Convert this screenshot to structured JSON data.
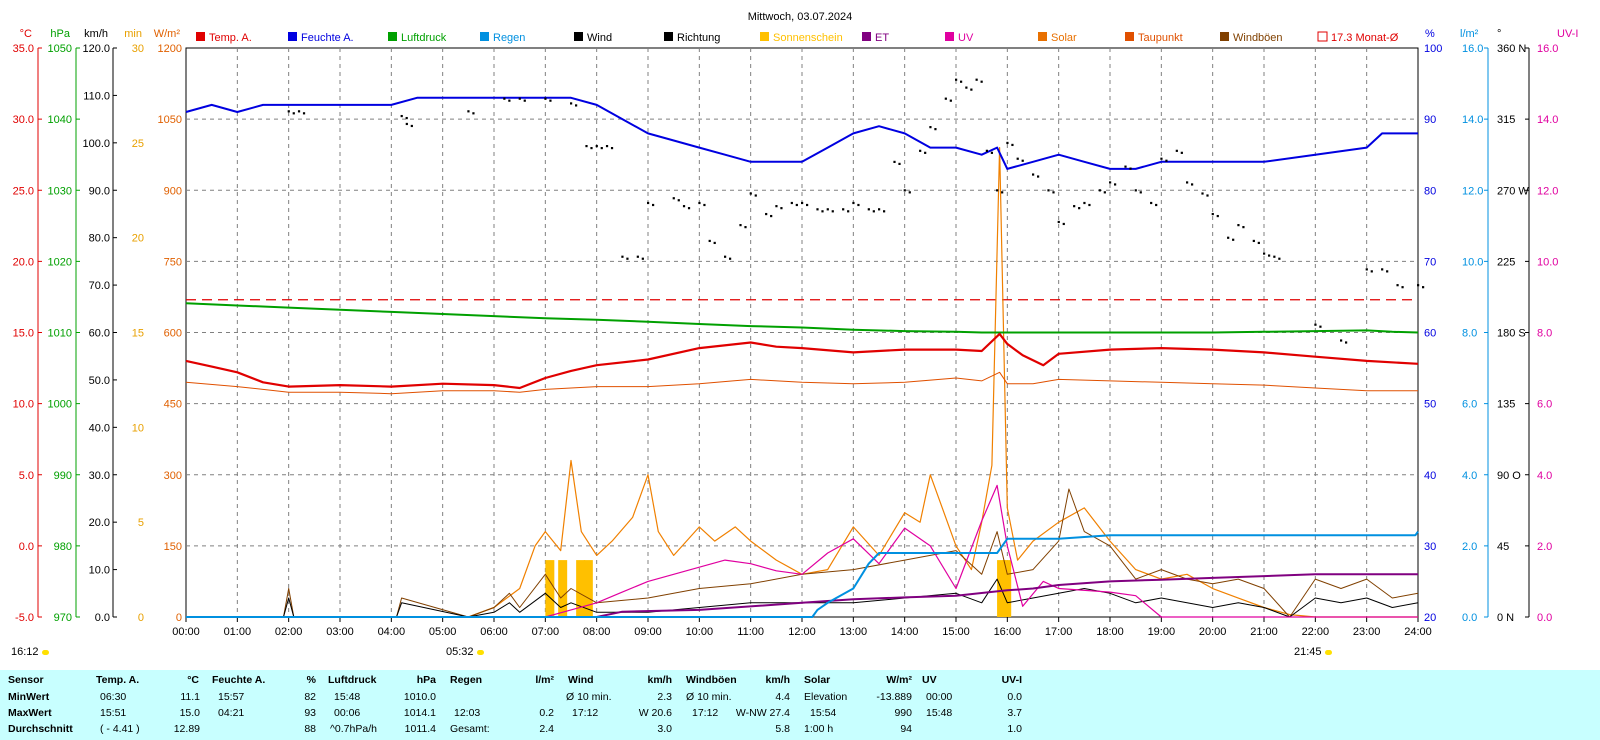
{
  "chart_data": {
    "type": "line",
    "title": "Mittwoch, 03.07.2024",
    "x_ticks": [
      "00:00",
      "01:00",
      "02:00",
      "03:00",
      "04:00",
      "05:00",
      "06:00",
      "07:00",
      "08:00",
      "09:00",
      "10:00",
      "11:00",
      "12:00",
      "13:00",
      "14:00",
      "15:00",
      "16:00",
      "17:00",
      "18:00",
      "19:00",
      "20:00",
      "21:00",
      "22:00",
      "23:00",
      "24:00"
    ],
    "axes": {
      "temp": {
        "unit": "°C",
        "range": [
          -5,
          35
        ],
        "ticks": [
          "35.0",
          "30.0",
          "25.0",
          "20.0",
          "15.0",
          "10.0",
          "5.0",
          "0.0",
          "-5.0"
        ],
        "color": "#e00000"
      },
      "pressure": {
        "unit": "hPa",
        "range": [
          970,
          1050
        ],
        "ticks": [
          "1050",
          "1040",
          "1030",
          "1020",
          "1010",
          "1000",
          "990",
          "980",
          "970"
        ],
        "color": "#00a000"
      },
      "wind": {
        "unit": "km/h",
        "range": [
          0,
          120
        ],
        "ticks": [
          "120.0",
          "110.0",
          "100.0",
          "90.0",
          "80.0",
          "70.0",
          "60.0",
          "50.0",
          "40.0",
          "30.0",
          "20.0",
          "10.0",
          "0.0"
        ],
        "color": "#000000"
      },
      "sunshine": {
        "unit": "min",
        "range": [
          0,
          30
        ],
        "ticks": [
          "30",
          "25",
          "20",
          "15",
          "10",
          "5",
          "0"
        ],
        "color": "#e8a000"
      },
      "solar": {
        "unit": "W/m²",
        "range": [
          0,
          1200
        ],
        "ticks": [
          "1200",
          "1050",
          "900",
          "750",
          "600",
          "450",
          "300",
          "150",
          "0"
        ],
        "color": "#e06000"
      },
      "humidity": {
        "unit": "%",
        "range": [
          20,
          100
        ],
        "ticks": [
          "100",
          "90",
          "80",
          "70",
          "60",
          "50",
          "40",
          "30",
          "20"
        ],
        "color": "#0000e0"
      },
      "rain": {
        "unit": "l/m²",
        "range": [
          0,
          16
        ],
        "ticks": [
          "16.0",
          "14.0",
          "12.0",
          "10.0",
          "8.0",
          "6.0",
          "4.0",
          "2.0",
          "0.0"
        ],
        "color": "#0090e0"
      },
      "direction": {
        "unit": "°",
        "ticks": [
          "360 N",
          "315",
          "270 W",
          "225",
          "180 S",
          "135",
          "90 O",
          "45",
          "0 N"
        ],
        "color": "#000000"
      },
      "uv": {
        "unit": "UV-I",
        "range": [
          0,
          16
        ],
        "ticks": [
          "16.0",
          "14.0",
          "12.0",
          "10.0",
          "8.0",
          "6.0",
          "4.0",
          "2.0",
          "0.0"
        ],
        "color": "#e000a0"
      }
    },
    "legend": [
      {
        "name": "Temp. A.",
        "color": "#e00000"
      },
      {
        "name": "Feuchte A.",
        "color": "#0000e0"
      },
      {
        "name": "Luftdruck",
        "color": "#00a000"
      },
      {
        "name": "Regen",
        "color": "#0090e0"
      },
      {
        "name": "Wind",
        "color": "#000000"
      },
      {
        "name": "Richtung",
        "color": "#000000"
      },
      {
        "name": "Sonnenschein",
        "color": "#ffc000"
      },
      {
        "name": "ET",
        "color": "#800080"
      },
      {
        "name": "UV",
        "color": "#e000a0"
      },
      {
        "name": "Solar",
        "color": "#e87000"
      },
      {
        "name": "Taupunkt",
        "color": "#e05000"
      },
      {
        "name": "Windböen",
        "color": "#804000"
      },
      {
        "name": "17.3 Monat-Ø",
        "color": "#e00000"
      }
    ],
    "monthly_avg_temp": 17.3,
    "series": [
      {
        "name": "Temp. A.",
        "axis": "temp",
        "x": [
          0,
          0.5,
          1,
          1.5,
          2,
          3,
          4,
          5,
          6,
          6.5,
          7,
          7.5,
          8,
          9,
          10,
          11,
          11.5,
          12,
          13,
          14,
          15,
          15.5,
          15.85,
          16,
          16.3,
          16.7,
          17,
          18,
          19,
          20,
          21,
          22,
          23,
          24
        ],
        "values": [
          13.0,
          12.6,
          12.2,
          11.5,
          11.2,
          11.3,
          11.2,
          11.4,
          11.3,
          11.1,
          11.8,
          12.3,
          12.7,
          13.1,
          13.9,
          14.3,
          14.0,
          13.9,
          13.6,
          13.8,
          13.8,
          13.7,
          14.9,
          14.2,
          13.4,
          12.7,
          13.5,
          13.8,
          13.9,
          13.8,
          13.6,
          13.3,
          13.0,
          12.8
        ]
      },
      {
        "name": "Taupunkt",
        "axis": "temp",
        "x": [
          0,
          1,
          2,
          3,
          4,
          5,
          6,
          6.5,
          7,
          8,
          9,
          10,
          11,
          12,
          13,
          14,
          15,
          15.5,
          15.85,
          16,
          16.5,
          17,
          18,
          19,
          20,
          21,
          22,
          23,
          24
        ],
        "values": [
          11.5,
          11.2,
          10.8,
          10.8,
          10.7,
          10.9,
          10.9,
          10.8,
          11.0,
          11.2,
          11.2,
          11.4,
          11.7,
          11.5,
          11.4,
          11.5,
          11.8,
          11.6,
          12.2,
          11.4,
          11.4,
          11.7,
          11.6,
          11.5,
          11.4,
          11.3,
          11.1,
          10.9,
          10.9
        ]
      },
      {
        "name": "Feuchte A.",
        "axis": "humidity",
        "x": [
          0,
          0.5,
          1,
          1.5,
          2,
          3,
          4,
          4.5,
          5,
          6,
          7,
          7.5,
          8,
          8.5,
          9,
          9.5,
          10,
          10.5,
          11,
          11.5,
          12,
          12.5,
          13,
          13.5,
          14,
          14.5,
          15,
          15.5,
          15.8,
          16,
          16.5,
          17,
          17.5,
          18,
          18.5,
          19,
          19.5,
          20,
          21,
          22,
          23,
          23.3,
          24
        ],
        "values": [
          91,
          92,
          91,
          92,
          92,
          92,
          92,
          93,
          93,
          93,
          93,
          93,
          92,
          90,
          88,
          87,
          86,
          85,
          84,
          84,
          84,
          86,
          88,
          89,
          88,
          86,
          86,
          85,
          86,
          83,
          84,
          85,
          84,
          83,
          83,
          84,
          84,
          84,
          84,
          85,
          86,
          88,
          88
        ]
      },
      {
        "name": "Luftdruck",
        "axis": "pressure",
        "x": [
          0,
          1,
          2,
          3,
          4,
          5,
          6,
          7,
          8,
          9,
          10,
          11,
          12,
          13,
          14,
          15,
          15.5,
          16,
          17,
          18,
          19,
          20,
          21,
          22,
          23,
          23.5,
          24
        ],
        "values": [
          1014.1,
          1013.8,
          1013.5,
          1013.2,
          1012.9,
          1012.6,
          1012.3,
          1012.0,
          1011.8,
          1011.5,
          1011.2,
          1010.9,
          1010.7,
          1010.4,
          1010.2,
          1010.1,
          1010.0,
          1010.0,
          1010.0,
          1010.0,
          1010.0,
          1010.0,
          1010.1,
          1010.2,
          1010.3,
          1010.1,
          1010.0
        ]
      },
      {
        "name": "Solar",
        "axis": "solar",
        "x": [
          0,
          5.5,
          6.0,
          6.5,
          6.8,
          7.0,
          7.3,
          7.5,
          7.7,
          8.0,
          8.3,
          8.7,
          9.0,
          9.2,
          9.5,
          10.0,
          10.3,
          10.7,
          11.0,
          11.5,
          12.0,
          12.5,
          13.0,
          13.5,
          14.0,
          14.3,
          14.5,
          15.0,
          15.3,
          15.5,
          15.7,
          15.85,
          16.0,
          16.2,
          16.5,
          17.0,
          17.5,
          18.0,
          18.5,
          19.0,
          19.5,
          20.0,
          20.5,
          21.0,
          21.5,
          22.0,
          24
        ],
        "values": [
          0,
          0,
          20,
          60,
          150,
          180,
          140,
          330,
          180,
          130,
          160,
          210,
          300,
          180,
          130,
          190,
          160,
          190,
          160,
          120,
          90,
          100,
          190,
          130,
          220,
          200,
          300,
          150,
          100,
          200,
          320,
          990,
          230,
          120,
          160,
          200,
          230,
          160,
          100,
          80,
          90,
          60,
          40,
          20,
          5,
          0,
          0
        ]
      },
      {
        "name": "Wind",
        "axis": "wind",
        "x": [
          0,
          1.9,
          2.0,
          2.1,
          4.1,
          4.2,
          5.5,
          6.0,
          6.3,
          6.5,
          7.0,
          7.3,
          7.5,
          8.0,
          9.0,
          10.0,
          11.0,
          12.0,
          13.0,
          14.0,
          15.0,
          15.5,
          15.8,
          16.0,
          16.5,
          17.0,
          17.5,
          18.0,
          18.5,
          19.0,
          19.5,
          20.0,
          20.5,
          21.0,
          21.5,
          22.0,
          22.5,
          23.0,
          23.5,
          24
        ],
        "values": [
          0,
          0,
          4,
          0,
          0,
          3,
          0,
          1,
          3,
          1,
          5,
          2,
          3,
          1,
          1,
          2,
          3,
          3,
          3,
          4,
          5,
          3,
          8,
          3,
          4,
          5,
          6,
          5,
          3,
          4,
          3,
          2,
          3,
          2,
          0,
          4,
          3,
          4,
          2,
          3
        ]
      },
      {
        "name": "Windböen",
        "axis": "wind",
        "x": [
          0,
          1.9,
          2.0,
          2.1,
          4.1,
          4.2,
          5.5,
          6.0,
          6.3,
          6.5,
          7.0,
          7.3,
          7.5,
          8.0,
          9.0,
          10.0,
          11.0,
          12.0,
          13.0,
          14.0,
          15.0,
          15.5,
          15.8,
          16.0,
          16.5,
          17.0,
          17.2,
          17.5,
          18.0,
          18.5,
          19.0,
          19.5,
          20.0,
          20.5,
          21.0,
          21.5,
          22.0,
          22.5,
          23.0,
          23.5,
          24
        ],
        "values": [
          0,
          0,
          6,
          0,
          0,
          4,
          0,
          2,
          5,
          2,
          9,
          4,
          6,
          3,
          4,
          6,
          7,
          9,
          10,
          12,
          14,
          9,
          18,
          9,
          10,
          16,
          27,
          18,
          15,
          8,
          10,
          8,
          7,
          8,
          6,
          0,
          8,
          6,
          8,
          4,
          5
        ]
      },
      {
        "name": "UV",
        "axis": "uv",
        "x": [
          0,
          7.0,
          7.5,
          8.0,
          8.5,
          9.0,
          9.5,
          10,
          10.5,
          11,
          11.5,
          12,
          12.5,
          13,
          13.5,
          14,
          14.5,
          15,
          15.5,
          15.8,
          16,
          16.3,
          16.7,
          17,
          18,
          18.5,
          19,
          24
        ],
        "values": [
          0,
          0,
          0.2,
          0.4,
          0.7,
          1.0,
          1.2,
          1.4,
          1.6,
          1.5,
          1.3,
          1.2,
          1.8,
          2.2,
          1.5,
          2.5,
          2.0,
          0.8,
          2.7,
          3.7,
          2.0,
          0.3,
          1.0,
          0.8,
          0.7,
          0.6,
          0,
          0
        ]
      },
      {
        "name": "Regen",
        "axis": "rain",
        "x": [
          0,
          12.2,
          12.3,
          12.5,
          13.0,
          13.3,
          13.5,
          14.0,
          15.0,
          15.8,
          16.0,
          17.0,
          18.0,
          23.95,
          24
        ],
        "values": [
          0,
          0,
          0.2,
          0.4,
          0.8,
          1.5,
          1.8,
          1.8,
          1.8,
          1.8,
          2.2,
          2.2,
          2.3,
          2.3,
          2.4
        ]
      },
      {
        "name": "ET",
        "axis": "uv",
        "x": [
          0,
          8.0,
          8.5,
          10,
          12,
          13,
          14,
          15,
          16,
          16.5,
          17,
          18,
          19,
          20,
          21,
          22,
          23,
          24
        ],
        "values": [
          0,
          0,
          0.15,
          0.2,
          0.4,
          0.5,
          0.55,
          0.6,
          0.75,
          0.8,
          0.9,
          1.0,
          1.05,
          1.1,
          1.15,
          1.2,
          1.2,
          1.2
        ]
      },
      {
        "name": "Sonnenschein",
        "axis": "sunshine",
        "type": "bar",
        "x": [
          7.0,
          7.25,
          7.6,
          7.75,
          15.8,
          15.9
        ],
        "values": [
          3.0,
          3.0,
          3.0,
          3.0,
          3.0,
          3.0
        ]
      },
      {
        "name": "Richtung",
        "axis": "direction",
        "type": "scatter",
        "x": [
          2.0,
          2.2,
          4.2,
          4.3,
          5.5,
          6.2,
          6.5,
          7.0,
          7.5,
          7.8,
          8.0,
          8.2,
          8.5,
          8.8,
          9.0,
          9.5,
          9.7,
          10.0,
          10.2,
          10.5,
          10.8,
          11.0,
          11.3,
          11.5,
          11.8,
          12.0,
          12.3,
          12.5,
          12.8,
          13.0,
          13.3,
          13.5,
          13.8,
          14.0,
          14.3,
          14.5,
          14.8,
          15.0,
          15.2,
          15.4,
          15.6,
          15.8,
          16.0,
          16.2,
          16.5,
          16.8,
          17.0,
          17.3,
          17.5,
          17.8,
          18.0,
          18.3,
          18.5,
          18.8,
          19.0,
          19.3,
          19.5,
          19.8,
          20.0,
          20.3,
          20.5,
          20.8,
          21.0,
          21.2,
          22.0,
          22.5,
          23.0,
          23.3,
          23.6,
          24.0
        ],
        "values": [
          320,
          320,
          317,
          312,
          320,
          328,
          328,
          328,
          325,
          298,
          298,
          298,
          228,
          228,
          262,
          265,
          260,
          262,
          238,
          228,
          248,
          268,
          255,
          260,
          262,
          262,
          258,
          258,
          258,
          262,
          258,
          258,
          288,
          270,
          295,
          310,
          328,
          340,
          335,
          340,
          295,
          270,
          300,
          290,
          280,
          270,
          250,
          260,
          262,
          270,
          275,
          285,
          270,
          262,
          290,
          295,
          275,
          268,
          255,
          240,
          248,
          238,
          230,
          228,
          185,
          175,
          220,
          220,
          210,
          210
        ]
      }
    ]
  },
  "footer": {
    "time_left": "16:12",
    "sunrise": "05:32",
    "sunset": "21:45"
  },
  "stats": {
    "headers": [
      "Sensor",
      "Temp. A.",
      "°C",
      "Feuchte A.",
      "%",
      "Luftdruck",
      "hPa",
      "Regen",
      "l/m²",
      "Wind",
      "km/h",
      "Windböen",
      "km/h",
      "Solar",
      "W/m²",
      "UV",
      "UV-I"
    ],
    "row_min": {
      "label": "MinWert",
      "temp_time": "06:30",
      "temp": "11.1",
      "hum_time": "15:57",
      "hum": "82",
      "press_time": "15:48",
      "press": "1010.0",
      "rain_time": "",
      "rain": "",
      "wind_time": "Ø 10 min.",
      "wind": "2.3",
      "gust_time": "Ø 10 min.",
      "gust": "4.4",
      "solar_time": "Elevation",
      "solar": "-13.889",
      "uv_time": "00:00",
      "uv": "0.0"
    },
    "row_max": {
      "label": "MaxWert",
      "temp_time": "15:51",
      "temp": "15.0",
      "hum_time": "04:21",
      "hum": "93",
      "press_time": "00:06",
      "press": "1014.1",
      "rain_time": "12:03",
      "rain": "0.2",
      "wind_time": "17:12",
      "wind": "W 20.6",
      "gust_time": "17:12",
      "gust": "W-NW 27.4",
      "solar_time": "15:54",
      "solar": "990",
      "uv_time": "15:48",
      "uv": "3.7"
    },
    "row_avg": {
      "label": "Durchschnitt",
      "temp_time": "( - 4.41 )",
      "temp": "12.89",
      "hum_time": "",
      "hum": "88",
      "press_time": "^0.7hPa/h",
      "press": "1011.4",
      "rain_time": "Gesamt:",
      "rain": "2.4",
      "wind_time": "",
      "wind": "3.0",
      "gust_time": "",
      "gust": "5.8",
      "solar_time": "1:00 h",
      "solar": "94",
      "uv_time": "",
      "uv": "1.0"
    }
  }
}
